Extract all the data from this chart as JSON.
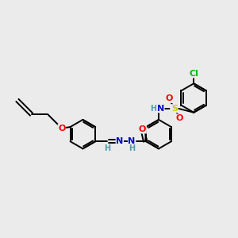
{
  "bg_color": "#ebebeb",
  "bond_color": "#000000",
  "bond_width": 1.4,
  "atom_colors": {
    "O": "#ff0000",
    "N": "#0000cc",
    "S": "#cccc00",
    "Cl": "#00bb00",
    "H": "#5599aa",
    "C": "#000000"
  },
  "font_size": 8,
  "fig_size": [
    3.0,
    3.0
  ],
  "dpi": 100
}
